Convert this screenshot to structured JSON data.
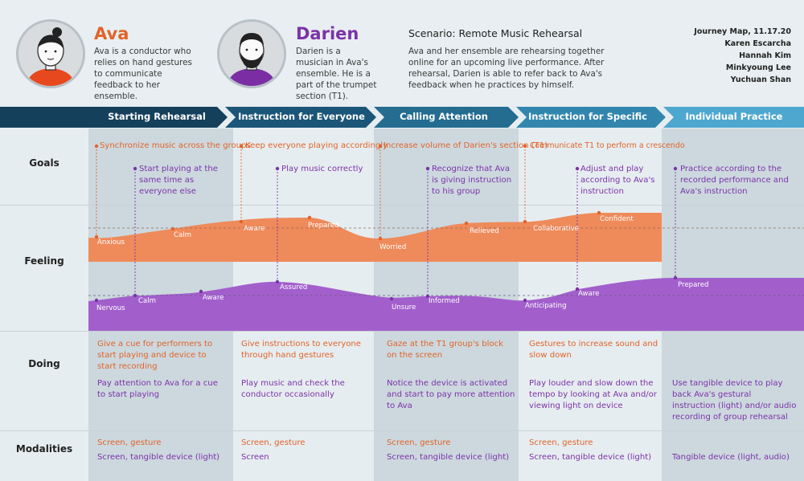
{
  "personas": {
    "ava": {
      "name": "Ava",
      "desc": "Ava is a conductor who relies on hand gestures to communicate feedback to her ensemble."
    },
    "darien": {
      "name": "Darien",
      "desc": "Darien is a musician in Ava's ensemble. He is a part of the trumpet section (T1)."
    }
  },
  "scenario": {
    "title": "Scenario: Remote Music Rehearsal",
    "desc": "Ava and her ensemble are rehearsing together online for an upcoming live performance. After rehearsal, Darien is able to refer back to Ava's feedback when he practices by himself."
  },
  "credits": [
    "Journey Map, 11.17.20",
    "Karen Escarcha",
    "Hannah Kim",
    "Minkyoung Lee",
    "Yuchuan Shan"
  ],
  "stages": [
    "Starting Rehearsal",
    "Instruction for Everyone",
    "Calling Attention",
    "Instruction for Specific Group",
    "Individual Practice"
  ],
  "rows": {
    "goals": "Goals",
    "feeling": "Feeling",
    "doing": "Doing",
    "modalities": "Modalities"
  },
  "goals": {
    "ava": [
      "Synchronize music across the groups",
      "Keep everyone playing accordingly",
      "Increase volume of Darien's section (T1)",
      "Communicate T1 to perform a crescendo"
    ],
    "darien": [
      "Start playing at the same time as everyone else",
      "Play music correctly",
      "Recognize that Ava is giving instruction to his group",
      "Adjust and play according to Ava's instruction",
      "Practice according to the recorded performance and Ava's instruction"
    ]
  },
  "feelings": {
    "ava": [
      "Anxious",
      "Calm",
      "Aware",
      "Prepared",
      "Worried",
      "Relieved",
      "Collaborative",
      "Confident"
    ],
    "darien": [
      "Nervous",
      "Calm",
      "Aware",
      "Assured",
      "Unsure",
      "Informed",
      "Anticipating",
      "Aware",
      "Prepared"
    ]
  },
  "doing": {
    "ava": [
      "Give a cue for performers to start playing and device to start recording",
      "Give instructions to everyone through hand gestures",
      "Gaze at the T1 group's block on the screen",
      "Gestures to increase sound and slow down"
    ],
    "darien": [
      "Pay attention to Ava for a cue to start playing",
      "Play music and check the conductor occasionally",
      "Notice the device is activated and start to pay more attention to Ava",
      "Play louder and slow down the tempo by looking at Ava and/or viewing light on device",
      "Use tangible device to play back Ava's gestural instruction (light) and/or audio recording of group rehearsal"
    ]
  },
  "modalities": {
    "ava": [
      "Screen, gesture",
      "Screen, gesture",
      "Screen, gesture",
      "Screen, gesture"
    ],
    "darien": [
      "Screen, tangible device (light)",
      "Screen",
      "Screen, tangible device (light)",
      "Screen, tangible device (light)",
      "Tangible device (light, audio)"
    ]
  },
  "colors": {
    "ava": "#e0642a",
    "darien": "#7b33a8",
    "stage1": "#14405e",
    "stage5": "#4ea7cf"
  }
}
